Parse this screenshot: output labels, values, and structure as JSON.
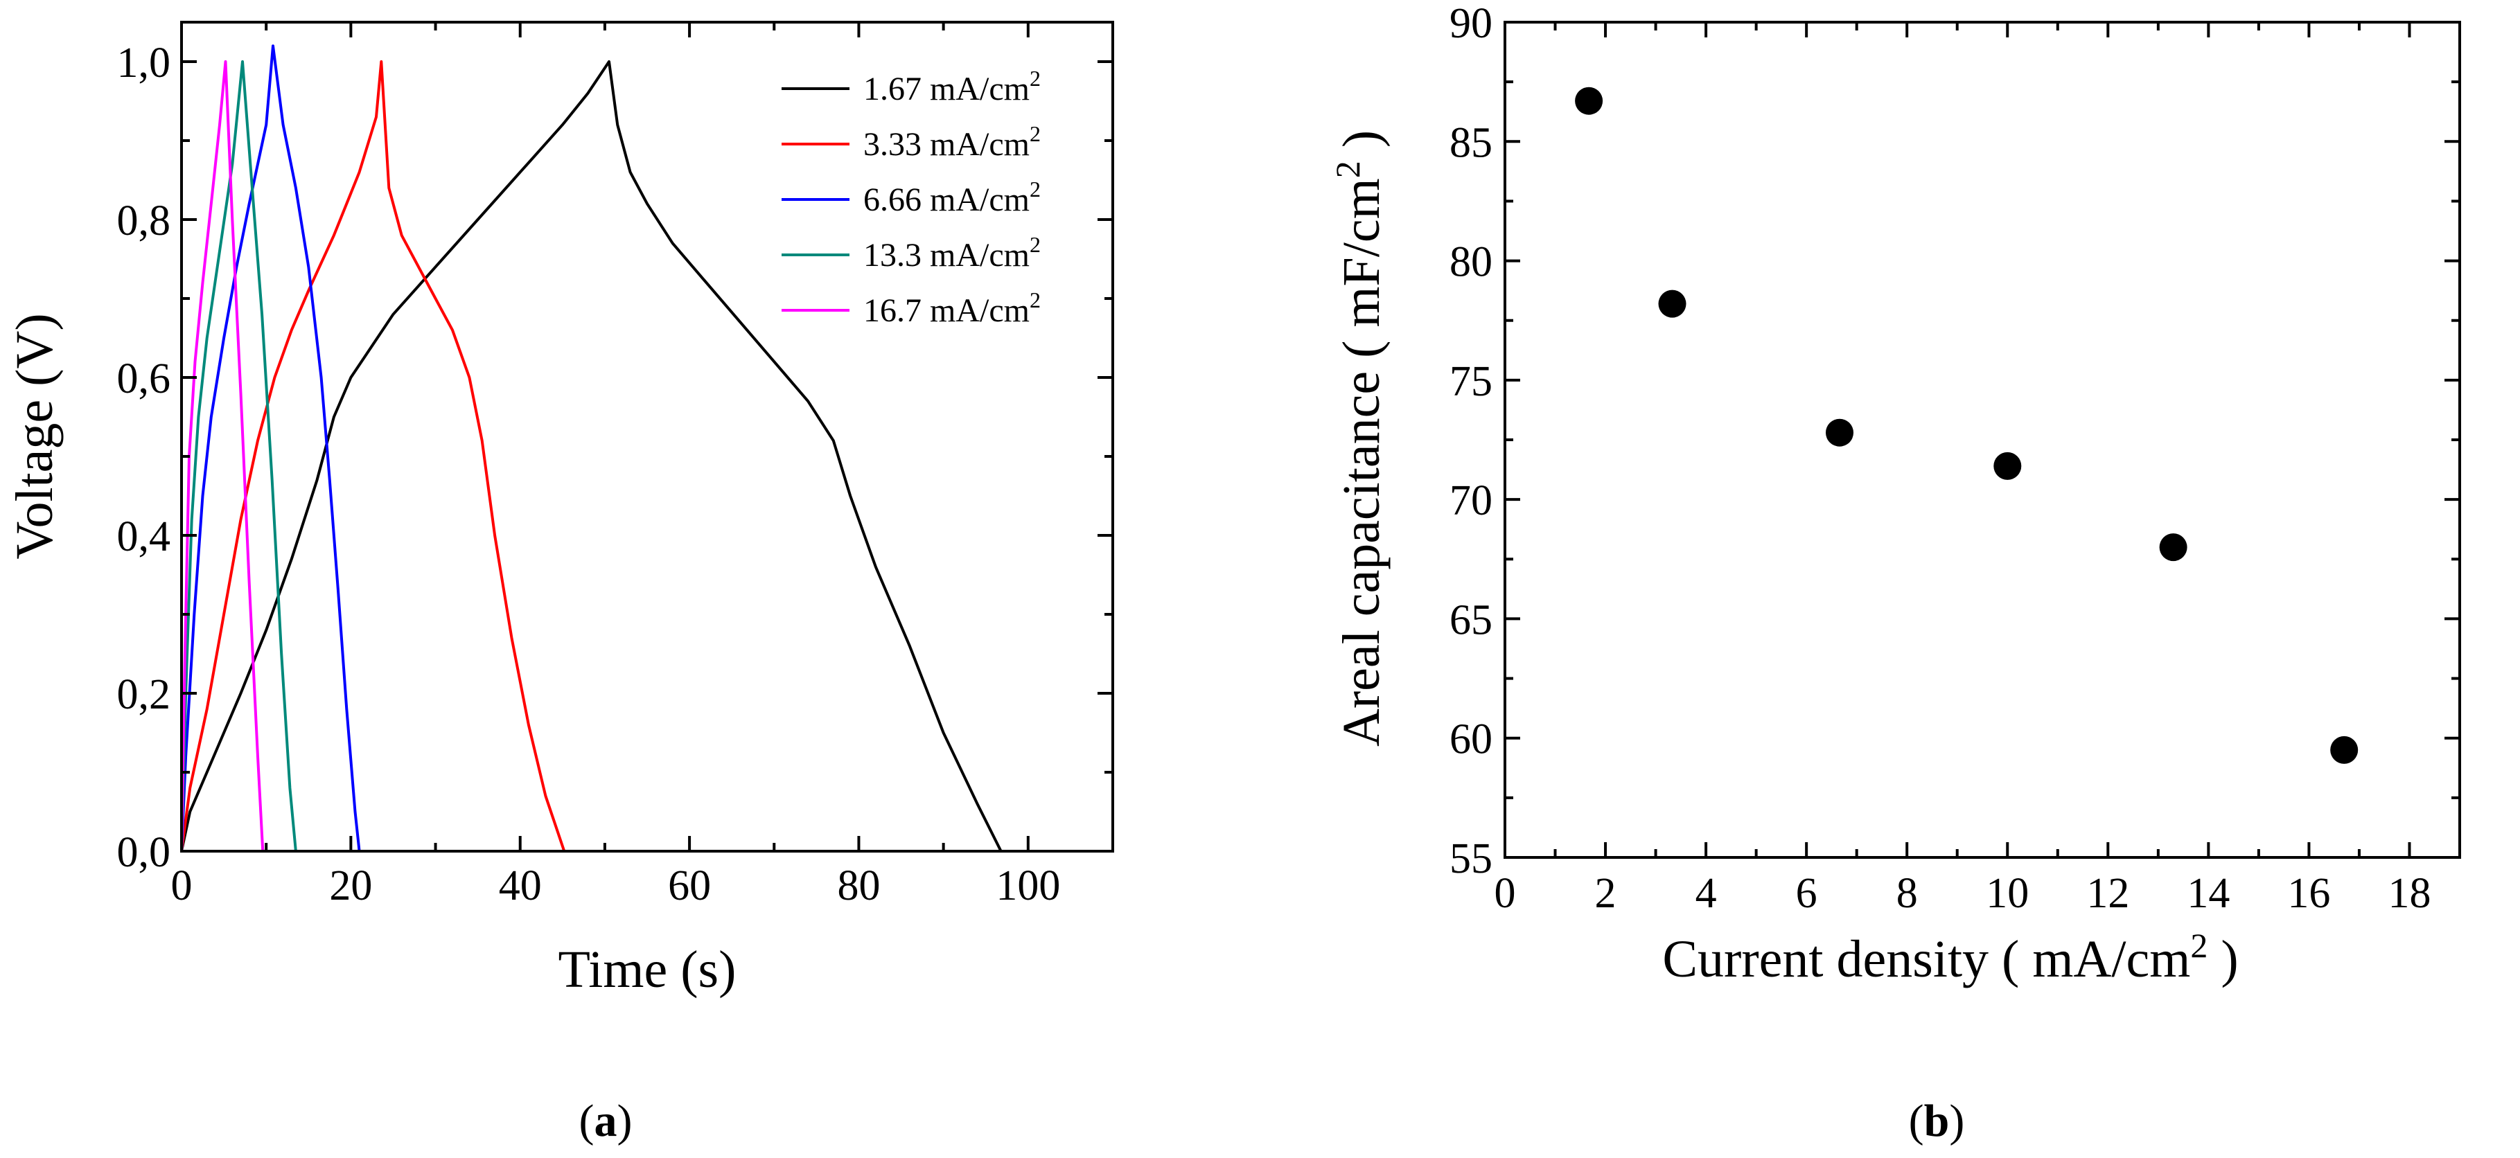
{
  "figure": {
    "panel_a_label": "a",
    "panel_b_label": "b"
  },
  "chart_data": [
    {
      "panel": "a",
      "type": "line",
      "title": "",
      "xlabel": "Time (s)",
      "ylabel": "Voltage (V)",
      "xlim": [
        0,
        110
      ],
      "ylim": [
        0,
        1.05
      ],
      "xticks": [
        0,
        20,
        40,
        60,
        80,
        100
      ],
      "xtick_labels": [
        "0",
        "20",
        "40",
        "60",
        "80",
        "100"
      ],
      "yticks": [
        0,
        0.2,
        0.4,
        0.6,
        0.8,
        1.0
      ],
      "ytick_labels": [
        "0,0",
        "0,2",
        "0,4",
        "0,6",
        "0,8",
        "1,0"
      ],
      "legend_position": "top-right",
      "series": [
        {
          "name": "1.67 mA/cm",
          "unit_exponent": "2",
          "color": "#000000",
          "x": [
            0,
            1,
            3,
            5,
            7,
            10,
            13,
            16,
            18,
            20,
            25,
            30,
            35,
            40,
            45,
            48,
            50.5,
            51.5,
            53,
            55,
            58,
            62,
            66,
            70,
            74,
            77,
            79,
            82,
            86,
            90,
            94,
            96.8
          ],
          "y": [
            0,
            0.05,
            0.1,
            0.15,
            0.2,
            0.28,
            0.37,
            0.47,
            0.55,
            0.6,
            0.68,
            0.74,
            0.8,
            0.86,
            0.92,
            0.96,
            1.0,
            0.92,
            0.86,
            0.82,
            0.77,
            0.72,
            0.67,
            0.62,
            0.57,
            0.52,
            0.45,
            0.36,
            0.26,
            0.15,
            0.06,
            0
          ]
        },
        {
          "name": "3.33 mA/cm",
          "unit_exponent": "2",
          "color": "#ff0000",
          "x": [
            0,
            1,
            3,
            5,
            7,
            9,
            11,
            13,
            15,
            18,
            21,
            23,
            23.6,
            24.5,
            26,
            28,
            30,
            32,
            34,
            35.5,
            37,
            39,
            41,
            43,
            45.2
          ],
          "y": [
            0,
            0.08,
            0.18,
            0.3,
            0.42,
            0.52,
            0.6,
            0.66,
            0.71,
            0.78,
            0.86,
            0.93,
            1.0,
            0.84,
            0.78,
            0.74,
            0.7,
            0.66,
            0.6,
            0.52,
            0.4,
            0.27,
            0.16,
            0.07,
            0
          ]
        },
        {
          "name": "6.66 mA/cm",
          "unit_exponent": "2",
          "color": "#0000ff",
          "x": [
            0,
            0.5,
            1.5,
            2.5,
            3.5,
            5,
            6.5,
            8,
            10,
            10.8,
            12,
            13.5,
            15,
            16.5,
            17.5,
            18.5,
            19.5,
            20.5,
            21
          ],
          "y": [
            0,
            0.12,
            0.3,
            0.45,
            0.55,
            0.65,
            0.74,
            0.82,
            0.92,
            1.02,
            0.92,
            0.84,
            0.74,
            0.6,
            0.47,
            0.33,
            0.18,
            0.05,
            0
          ]
        },
        {
          "name": "13.3 mA/cm",
          "unit_exponent": "2",
          "color": "#00897b",
          "x": [
            0,
            0.5,
            1.2,
            2,
            3,
            4.5,
            6,
            7.2,
            8.2,
            9.5,
            10.7,
            11.8,
            12.8,
            13.5
          ],
          "y": [
            0,
            0.2,
            0.42,
            0.55,
            0.65,
            0.76,
            0.87,
            1.0,
            0.86,
            0.68,
            0.47,
            0.25,
            0.08,
            0
          ]
        },
        {
          "name": "16.7 mA/cm",
          "unit_exponent": "2",
          "color": "#ff00ff",
          "x": [
            0,
            0.4,
            0.9,
            1.6,
            2.5,
            3.5,
            4.5,
            5.2,
            6,
            7,
            8,
            9,
            9.6
          ],
          "y": [
            0,
            0.25,
            0.5,
            0.62,
            0.72,
            0.82,
            0.92,
            1.0,
            0.8,
            0.58,
            0.34,
            0.12,
            0
          ]
        }
      ]
    },
    {
      "panel": "b",
      "type": "scatter",
      "title": "",
      "xlabel": "Current density ( mA/cm",
      "xlabel_exponent": "2",
      "xlabel_suffix": " )",
      "ylabel": "Areal capacitance ( mF/cm",
      "ylabel_exponent": "2",
      "ylabel_suffix": " )",
      "xlim": [
        0,
        19
      ],
      "ylim": [
        55,
        90
      ],
      "xticks": [
        0,
        2,
        4,
        6,
        8,
        10,
        12,
        14,
        16,
        18
      ],
      "xtick_labels": [
        "0",
        "2",
        "4",
        "6",
        "8",
        "10",
        "12",
        "14",
        "16",
        "18"
      ],
      "yticks": [
        55,
        60,
        65,
        70,
        75,
        80,
        85,
        90
      ],
      "ytick_labels": [
        "55",
        "60",
        "65",
        "70",
        "75",
        "80",
        "85",
        "90"
      ],
      "series": [
        {
          "name": "Areal capacitance",
          "color": "#000000",
          "x": [
            1.67,
            3.33,
            6.66,
            10.0,
            13.3,
            16.7
          ],
          "y": [
            86.7,
            78.2,
            72.8,
            71.4,
            68.0,
            59.5
          ]
        }
      ]
    }
  ]
}
